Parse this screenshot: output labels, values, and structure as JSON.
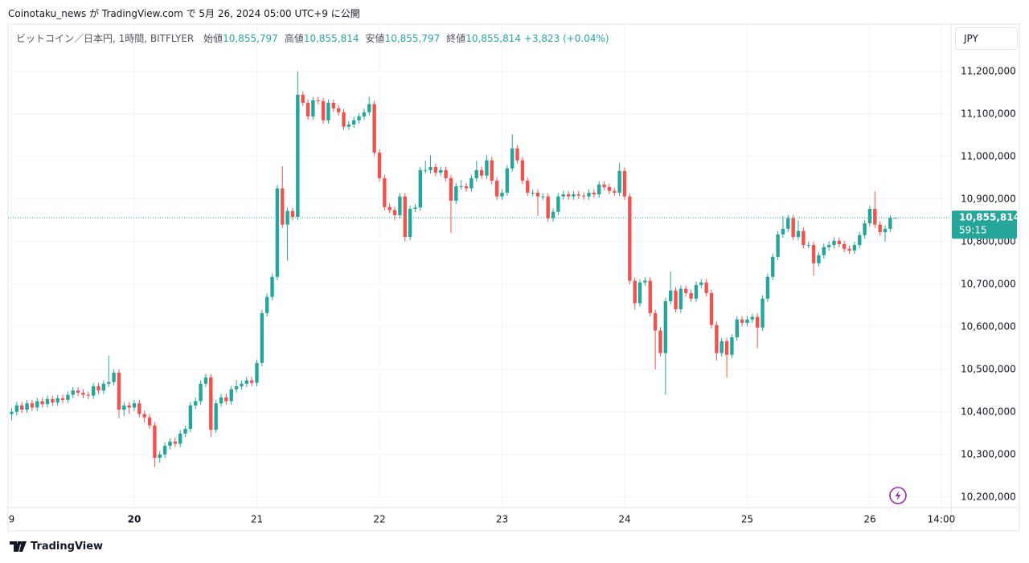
{
  "header": {
    "publish_line": "Coinotaku_news が TradingView.com で 5月 26, 2024 05:00 UTC+9 に公開"
  },
  "chart_data": {
    "type": "candlestick",
    "symbol": "ビットコイン／日本円, 1時間, BITFLYER",
    "legend": [
      {
        "label": "始値",
        "value": "10,855,797"
      },
      {
        "label": "高値",
        "value": "10,855,814"
      },
      {
        "label": "安値",
        "value": "10,855,797"
      },
      {
        "label": "終値",
        "value": "10,855,814"
      }
    ],
    "change": "+3,823 (+0.04%)",
    "currency": "JPY",
    "last_price_label": "10,855,814",
    "countdown": "59:15",
    "colors": {
      "up": "#26a69a",
      "down": "#ef5350"
    },
    "grid": true,
    "ylim": [
      10175000,
      11311000
    ],
    "yticks": [
      {
        "value": 10200000,
        "label": "10,200,000"
      },
      {
        "value": 10300000,
        "label": "10,300,000"
      },
      {
        "value": 10400000,
        "label": "10,400,000"
      },
      {
        "value": 10500000,
        "label": "10,500,000"
      },
      {
        "value": 10600000,
        "label": "10,600,000"
      },
      {
        "value": 10700000,
        "label": "10,700,000"
      },
      {
        "value": 10800000,
        "label": "10,800,000"
      },
      {
        "value": 10900000,
        "label": "10,900,000"
      },
      {
        "value": 11000000,
        "label": "11,000,000"
      },
      {
        "value": 11100000,
        "label": "11,100,000"
      },
      {
        "value": 11200000,
        "label": "11,200,000"
      }
    ],
    "categories": [
      "9",
      null,
      null,
      null,
      null,
      null,
      null,
      null,
      null,
      null,
      null,
      null,
      null,
      null,
      null,
      null,
      null,
      null,
      null,
      null,
      null,
      null,
      null,
      null,
      "20",
      null,
      null,
      null,
      null,
      null,
      null,
      null,
      null,
      null,
      null,
      null,
      null,
      null,
      null,
      null,
      null,
      null,
      null,
      null,
      null,
      null,
      null,
      null,
      "21",
      null,
      null,
      null,
      null,
      null,
      null,
      null,
      null,
      null,
      null,
      null,
      null,
      null,
      null,
      null,
      null,
      null,
      null,
      null,
      null,
      null,
      null,
      null,
      "22",
      null,
      null,
      null,
      null,
      null,
      null,
      null,
      null,
      null,
      null,
      null,
      null,
      null,
      null,
      null,
      null,
      null,
      null,
      null,
      null,
      null,
      null,
      null,
      "23",
      null,
      null,
      null,
      null,
      null,
      null,
      null,
      null,
      null,
      null,
      null,
      null,
      null,
      null,
      null,
      null,
      null,
      null,
      null,
      null,
      null,
      null,
      null,
      "24",
      null,
      null,
      null,
      null,
      null,
      null,
      null,
      null,
      null,
      null,
      null,
      null,
      null,
      null,
      null,
      null,
      null,
      null,
      null,
      null,
      null,
      null,
      null,
      "25",
      null,
      null,
      null,
      null,
      null,
      null,
      null,
      null,
      null,
      null,
      null,
      null,
      null,
      null,
      null,
      null,
      null,
      null,
      null,
      null,
      null,
      null,
      null,
      "26",
      null,
      null,
      null,
      null,
      null,
      null,
      null,
      null,
      null,
      null,
      null,
      null,
      null,
      "14:00"
    ],
    "open": [
      10395000,
      10400000,
      10415000,
      10405000,
      10420000,
      10410000,
      10425000,
      10418000,
      10430000,
      10422000,
      10432000,
      10428000,
      10440000,
      10450000,
      10445000,
      10440000,
      10438000,
      10460000,
      10450000,
      10466000,
      10470000,
      10492000,
      10405000,
      10415000,
      10410000,
      10420000,
      10395000,
      10387000,
      10368000,
      10292000,
      10300000,
      10320000,
      10330000,
      10325000,
      10349000,
      10360000,
      10415000,
      10425000,
      10466000,
      10481000,
      10358000,
      10420000,
      10434000,
      10425000,
      10453000,
      10460000,
      10466000,
      10474000,
      10468000,
      10515000,
      10632000,
      10670000,
      10717000,
      10925000,
      10840000,
      10872000,
      10858000,
      11145000,
      11126000,
      11094000,
      11132000,
      11130000,
      11085000,
      11126000,
      11113000,
      11104000,
      11070000,
      11075000,
      11085000,
      11094000,
      11104000,
      11123000,
      11009000,
      10949000,
      10881000,
      10874000,
      10862000,
      10906000,
      10811000,
      10877000,
      10880000,
      10968000,
      10968000,
      10975000,
      10962000,
      10968000,
      10949000,
      10896000,
      10930000,
      10930000,
      10925000,
      10949000,
      10968000,
      10955000,
      10991000,
      10943000,
      10906000,
      10915000,
      10972000,
      11019000,
      10991000,
      10943000,
      10915000,
      10915000,
      10906000,
      10906000,
      10855000,
      10870000,
      10906000,
      10911000,
      10906000,
      10911000,
      10908000,
      10906000,
      10915000,
      10911000,
      10934000,
      10928000,
      10919000,
      10915000,
      10966000,
      10906000,
      10708000,
      10655000,
      10704000,
      10708000,
      10632000,
      10591000,
      10538000,
      10660000,
      10685000,
      10641000,
      10689000,
      10679000,
      10666000,
      10698000,
      10704000,
      10679000,
      10604000,
      10538000,
      10566000,
      10534000,
      10575000,
      10617000,
      10609000,
      10617000,
      10623000,
      10598000,
      10666000,
      10717000,
      10764000,
      10817000,
      10830000,
      10855000,
      10811000,
      10825000,
      10792000,
      10792000,
      10749000,
      10768000,
      10787000,
      10792000,
      10802000,
      10794000,
      10783000,
      10779000,
      10792000,
      10815000,
      10843000,
      10877000,
      10840000,
      10822000,
      10830000,
      10855797,
      null,
      null,
      null,
      null,
      null,
      null,
      null,
      null,
      null
    ],
    "high": [
      10408000,
      10423000,
      10423000,
      10428000,
      10428000,
      10433000,
      10433000,
      10438000,
      10438000,
      10440000,
      10440000,
      10448000,
      10458000,
      10458000,
      10453000,
      10448000,
      10468000,
      10468000,
      10474000,
      10532000,
      10500000,
      10500000,
      10423000,
      10423000,
      10428000,
      10428000,
      10403000,
      10395000,
      10376000,
      10308000,
      10328000,
      10338000,
      10340000,
      10357000,
      10368000,
      10423000,
      10433000,
      10474000,
      10489000,
      10489000,
      10428000,
      10442000,
      10442000,
      10461000,
      10475000,
      10474000,
      10482000,
      10482000,
      10523000,
      10640000,
      10678000,
      10725000,
      10933000,
      10977000,
      10880000,
      10880000,
      11200000,
      11153000,
      11134000,
      11140000,
      11140000,
      11138000,
      11134000,
      11134000,
      11121000,
      11112000,
      11083000,
      11093000,
      11102000,
      11112000,
      11140000,
      11131000,
      11017000,
      10957000,
      10889000,
      10882000,
      10914000,
      10914000,
      10885000,
      10888000,
      10976000,
      10990000,
      11003000,
      10983000,
      10976000,
      10976000,
      10957000,
      10938000,
      10945000,
      10938000,
      10957000,
      10990000,
      10976000,
      11003000,
      10999000,
      10951000,
      10923000,
      10980000,
      11052000,
      11027000,
      10999000,
      10951000,
      10923000,
      10923000,
      10914000,
      10914000,
      10878000,
      10914000,
      10919000,
      10919000,
      10919000,
      10919000,
      10916000,
      10923000,
      10923000,
      10942000,
      10942000,
      10936000,
      10927000,
      10985000,
      10974000,
      10914000,
      10716000,
      10712000,
      10716000,
      10716000,
      10640000,
      10599000,
      10668000,
      10730000,
      10693000,
      10697000,
      10697000,
      10687000,
      10706000,
      10712000,
      10712000,
      10687000,
      10612000,
      10574000,
      10574000,
      10583000,
      10625000,
      10625000,
      10625000,
      10631000,
      10631000,
      10674000,
      10725000,
      10772000,
      10825000,
      10860000,
      10863000,
      10863000,
      10850000,
      10833000,
      10800000,
      10800000,
      10776000,
      10795000,
      10800000,
      10810000,
      10810000,
      10802000,
      10791000,
      10800000,
      10823000,
      10851000,
      10885000,
      10918000,
      10848000,
      10838000,
      10862000,
      10855814,
      null,
      null,
      null,
      null,
      null,
      null,
      null,
      null,
      null
    ],
    "low": [
      10380000,
      10392000,
      10397000,
      10397000,
      10402000,
      10402000,
      10410000,
      10410000,
      10414000,
      10414000,
      10420000,
      10420000,
      10432000,
      10437000,
      10432000,
      10430000,
      10430000,
      10442000,
      10442000,
      10458000,
      10462000,
      10385000,
      10390000,
      10395000,
      10402000,
      10387000,
      10375000,
      10360000,
      10270000,
      10280000,
      10292000,
      10312000,
      10317000,
      10317000,
      10341000,
      10352000,
      10407000,
      10417000,
      10458000,
      10340000,
      10350000,
      10412000,
      10417000,
      10417000,
      10445000,
      10452000,
      10458000,
      10460000,
      10460000,
      10507000,
      10624000,
      10662000,
      10709000,
      10832000,
      10755000,
      10850000,
      10850000,
      11118000,
      11086000,
      11086000,
      11122000,
      11077000,
      11077000,
      11105000,
      11096000,
      11062000,
      11062000,
      11067000,
      11077000,
      11086000,
      11096000,
      11001000,
      10941000,
      10873000,
      10866000,
      10850000,
      10854000,
      10800000,
      10803000,
      10869000,
      10872000,
      10960000,
      10960000,
      10954000,
      10954000,
      10941000,
      10820000,
      10888000,
      10922000,
      10917000,
      10917000,
      10941000,
      10947000,
      10947000,
      10935000,
      10898000,
      10898000,
      10907000,
      10964000,
      10983000,
      10935000,
      10907000,
      10907000,
      10860000,
      10898000,
      10847000,
      10847000,
      10862000,
      10898000,
      10898000,
      10898000,
      10900000,
      10898000,
      10898000,
      10903000,
      10903000,
      10920000,
      10911000,
      10907000,
      10907000,
      10898000,
      10700000,
      10640000,
      10647000,
      10696000,
      10624000,
      10500000,
      10530000,
      10440000,
      10652000,
      10633000,
      10633000,
      10671000,
      10658000,
      10658000,
      10690000,
      10671000,
      10596000,
      10520000,
      10530000,
      10480000,
      10526000,
      10567000,
      10601000,
      10601000,
      10609000,
      10550000,
      10590000,
      10658000,
      10709000,
      10756000,
      10809000,
      10822000,
      10803000,
      10803000,
      10784000,
      10784000,
      10720000,
      10741000,
      10760000,
      10779000,
      10784000,
      10786000,
      10775000,
      10771000,
      10771000,
      10784000,
      10807000,
      10835000,
      10832000,
      10814000,
      10800000,
      10822000,
      10855797,
      null,
      null,
      null,
      null,
      null,
      null,
      null,
      null,
      null
    ],
    "close": [
      10400000,
      10415000,
      10405000,
      10420000,
      10410000,
      10425000,
      10418000,
      10430000,
      10422000,
      10432000,
      10428000,
      10440000,
      10450000,
      10445000,
      10440000,
      10438000,
      10460000,
      10450000,
      10466000,
      10470000,
      10492000,
      10405000,
      10415000,
      10410000,
      10420000,
      10395000,
      10387000,
      10368000,
      10292000,
      10300000,
      10320000,
      10330000,
      10325000,
      10349000,
      10360000,
      10415000,
      10425000,
      10466000,
      10481000,
      10358000,
      10420000,
      10434000,
      10425000,
      10453000,
      10460000,
      10466000,
      10474000,
      10468000,
      10515000,
      10632000,
      10670000,
      10717000,
      10925000,
      10840000,
      10872000,
      10858000,
      11145000,
      11126000,
      11094000,
      11132000,
      11130000,
      11085000,
      11126000,
      11113000,
      11104000,
      11070000,
      11075000,
      11085000,
      11094000,
      11104000,
      11123000,
      11009000,
      10949000,
      10881000,
      10874000,
      10862000,
      10906000,
      10811000,
      10877000,
      10880000,
      10968000,
      10968000,
      10975000,
      10962000,
      10968000,
      10949000,
      10896000,
      10930000,
      10930000,
      10925000,
      10949000,
      10968000,
      10955000,
      10991000,
      10943000,
      10906000,
      10915000,
      10972000,
      11019000,
      10991000,
      10943000,
      10915000,
      10915000,
      10906000,
      10906000,
      10855000,
      10870000,
      10906000,
      10911000,
      10906000,
      10911000,
      10908000,
      10906000,
      10915000,
      10911000,
      10934000,
      10928000,
      10919000,
      10915000,
      10966000,
      10906000,
      10708000,
      10655000,
      10704000,
      10708000,
      10632000,
      10591000,
      10538000,
      10660000,
      10685000,
      10641000,
      10689000,
      10679000,
      10666000,
      10698000,
      10704000,
      10679000,
      10604000,
      10538000,
      10566000,
      10534000,
      10575000,
      10617000,
      10609000,
      10617000,
      10623000,
      10598000,
      10666000,
      10717000,
      10764000,
      10817000,
      10830000,
      10855000,
      10811000,
      10825000,
      10792000,
      10792000,
      10749000,
      10768000,
      10787000,
      10792000,
      10802000,
      10794000,
      10783000,
      10779000,
      10792000,
      10815000,
      10843000,
      10877000,
      10840000,
      10822000,
      10830000,
      10855797,
      10855814,
      null,
      null,
      null,
      null,
      null,
      null,
      null,
      null,
      null
    ]
  },
  "footer": {
    "brand": "TradingView"
  }
}
